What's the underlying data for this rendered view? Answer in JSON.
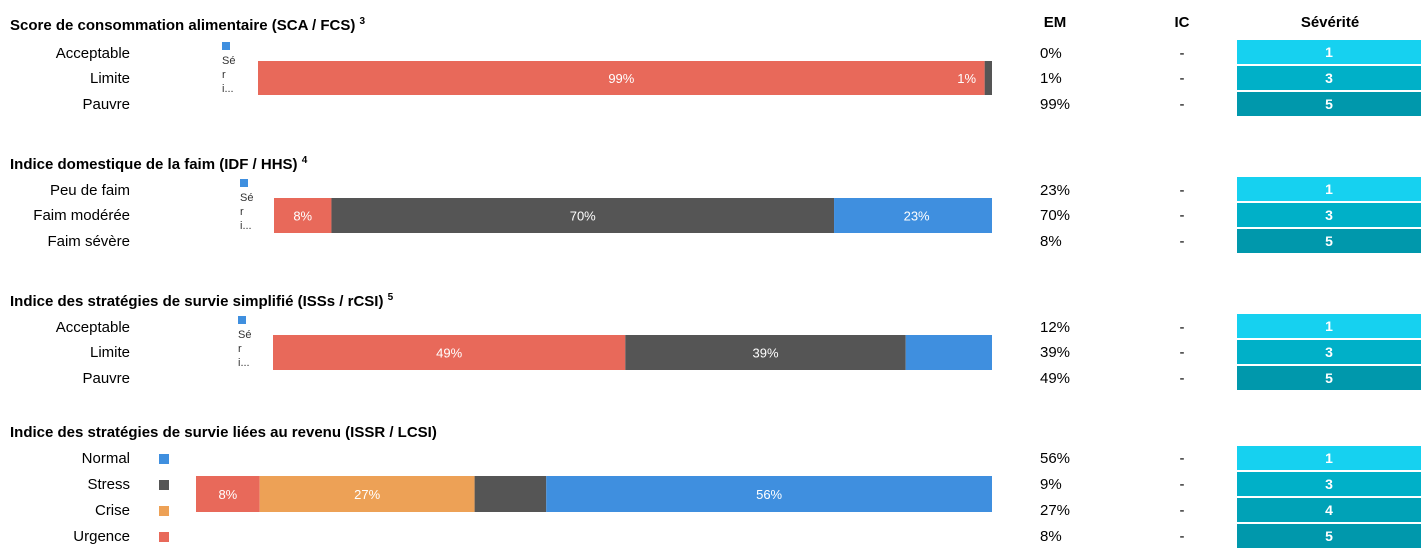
{
  "headers": {
    "em": "EM",
    "ic": "IC",
    "severity": "Sévérité"
  },
  "colors": {
    "blue": "#3f8fdf",
    "dark": "#555555",
    "orange": "#eda156",
    "red": "#e8695a",
    "sev1": "#16d1f0",
    "sev3": "#00b0c8",
    "sev4": "#00a2b7",
    "sev5": "#0098ac"
  },
  "sections": [
    {
      "title": "Score de consommation alimentaire (SCA / FCS)",
      "sup": "3",
      "categories": [
        "Acceptable",
        "Limite",
        "Pauvre"
      ],
      "em": [
        "0%",
        "1%",
        "99%"
      ],
      "ic": [
        "-",
        "-",
        "-"
      ],
      "severity": [
        "1",
        "3",
        "5"
      ],
      "legend_label": "Séri..."
    },
    {
      "title": "Indice domestique de la faim (IDF / HHS)",
      "sup": "4",
      "categories": [
        "Peu de faim",
        "Faim modérée",
        "Faim sévère"
      ],
      "em": [
        "23%",
        "70%",
        "8%"
      ],
      "ic": [
        "-",
        "-",
        "-"
      ],
      "severity": [
        "1",
        "3",
        "5"
      ],
      "legend_label": "Séri..."
    },
    {
      "title": "Indice des stratégies de survie simplifié (ISSs / rCSI)",
      "sup": "5",
      "categories": [
        "Acceptable",
        "Limite",
        "Pauvre"
      ],
      "em": [
        "12%",
        "39%",
        "49%"
      ],
      "ic": [
        "-",
        "-",
        "-"
      ],
      "severity": [
        "1",
        "3",
        "5"
      ],
      "legend_label": "Séri..."
    },
    {
      "title": "Indice des stratégies de survie liées au revenu (ISSR / LCSI)",
      "sup": "",
      "categories": [
        "Normal",
        "Stress",
        "Crise",
        "Urgence"
      ],
      "em": [
        "56%",
        "9%",
        "27%",
        "8%"
      ],
      "ic": [
        "-",
        "-",
        "-",
        "-"
      ],
      "severity": [
        "1",
        "3",
        "4",
        "5"
      ],
      "legend_label": ""
    }
  ],
  "chart_data": [
    {
      "type": "bar",
      "orientation": "horizontal-stacked",
      "xlim": [
        0,
        100
      ],
      "segments": [
        {
          "value": 99,
          "label": "99%",
          "color": "#e8695a"
        },
        {
          "value": 1,
          "label": "1%",
          "color": "#555555"
        },
        {
          "value": 0,
          "label": "",
          "color": "#3f8fdf"
        }
      ]
    },
    {
      "type": "bar",
      "orientation": "horizontal-stacked",
      "xlim": [
        0,
        100
      ],
      "segments": [
        {
          "value": 8,
          "label": "8%",
          "color": "#e8695a"
        },
        {
          "value": 70,
          "label": "70%",
          "color": "#555555"
        },
        {
          "value": 23,
          "label": "23%",
          "color": "#3f8fdf"
        }
      ]
    },
    {
      "type": "bar",
      "orientation": "horizontal-stacked",
      "xlim": [
        0,
        100
      ],
      "segments": [
        {
          "value": 49,
          "label": "49%",
          "color": "#e8695a"
        },
        {
          "value": 39,
          "label": "39%",
          "color": "#555555"
        },
        {
          "value": 12,
          "label": "",
          "color": "#3f8fdf"
        }
      ]
    },
    {
      "type": "bar",
      "orientation": "horizontal-stacked",
      "xlim": [
        0,
        100
      ],
      "segments": [
        {
          "value": 8,
          "label": "8%",
          "color": "#e8695a"
        },
        {
          "value": 27,
          "label": "27%",
          "color": "#eda156"
        },
        {
          "value": 9,
          "label": "",
          "color": "#555555"
        },
        {
          "value": 56,
          "label": "56%",
          "color": "#3f8fdf"
        }
      ]
    }
  ]
}
